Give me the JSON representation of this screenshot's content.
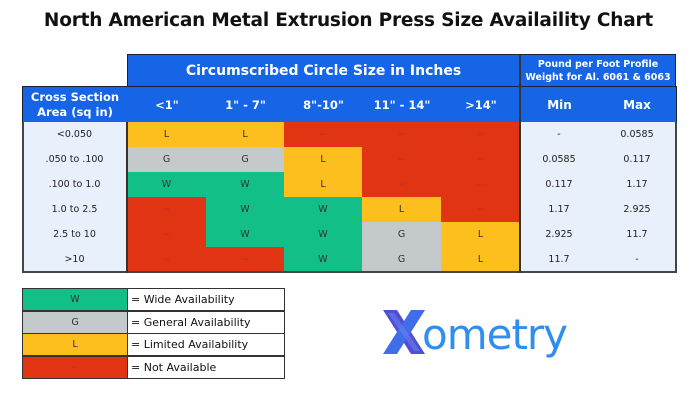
{
  "chart_data": {
    "type": "table",
    "title": "North American Metal Extrusion Press Size Availaility Chart",
    "group_headers": {
      "circle": "Circumscribed Circle Size in Inches",
      "weight": "Pound per Foot Profile Weight for Al. 6061 & 6063"
    },
    "row_header": "Cross Section Area (sq in)",
    "columns": [
      "<1\"",
      "1\" - 7\"",
      "8\"-10\"",
      "11\" - 14\"",
      ">14\""
    ],
    "weight_columns": [
      "Min",
      "Max"
    ],
    "rows": [
      {
        "label": "<0.050",
        "cells": [
          "L",
          "L",
          "--",
          "--",
          "--"
        ],
        "min": "-",
        "max": "0.0585"
      },
      {
        "label": ".050 to .100",
        "cells": [
          "G",
          "G",
          "L",
          "--",
          "--"
        ],
        "min": "0.0585",
        "max": "0.117"
      },
      {
        "label": ".100 to 1.0",
        "cells": [
          "W",
          "W",
          "L",
          "--",
          "--"
        ],
        "min": "0.117",
        "max": "1.17"
      },
      {
        "label": "1.0 to 2.5",
        "cells": [
          "--",
          "W",
          "W",
          "L",
          "--"
        ],
        "min": "1.17",
        "max": "2.925"
      },
      {
        "label": "2.5 to 10",
        "cells": [
          "--",
          "W",
          "W",
          "G",
          "L"
        ],
        "min": "2.925",
        "max": "11.7"
      },
      {
        "label": ">10",
        "cells": [
          "--",
          "--",
          "W",
          "G",
          "L"
        ],
        "min": "11.7",
        "max": "-"
      }
    ],
    "colors": {
      "W": "#13bf88",
      "G": "#c4c9cc",
      "L": "#fdbf1e",
      "--": "#e13412",
      "header": "#1565e6",
      "label_bg": "#e7f0fb"
    }
  },
  "legend": [
    {
      "code": "W",
      "text": "= Wide Availability"
    },
    {
      "code": "G",
      "text": "= General Availability"
    },
    {
      "code": "L",
      "text": "= Limited Availability"
    },
    {
      "code": "--",
      "text": "= Not Available"
    }
  ],
  "logo": {
    "text": "Xometry",
    "colors": {
      "x": "#4f4fd6",
      "word": "#2f8ef0"
    }
  }
}
